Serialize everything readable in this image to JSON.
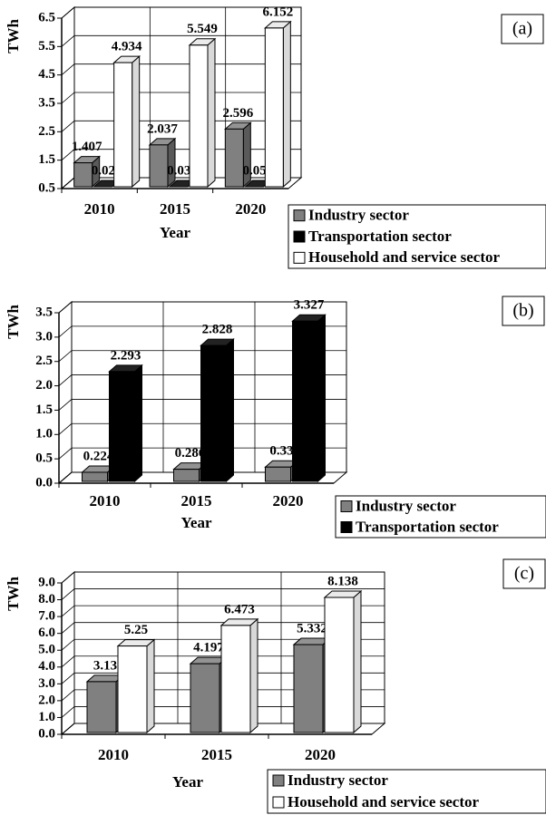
{
  "chart_data": [
    {
      "type": "bar",
      "panel": "(a)",
      "ylabel": "TWh",
      "xlabel": "Year",
      "categories": [
        "2010",
        "2015",
        "2020"
      ],
      "series": [
        {
          "name": "Industry sector",
          "color": "#808080",
          "values": [
            1.407,
            2.037,
            2.596
          ]
        },
        {
          "name": "Transportation sector",
          "color": "#000000",
          "values": [
            0.025,
            0.033,
            0.052
          ]
        },
        {
          "name": "Household and service sector",
          "color": "#ffffff",
          "values": [
            4.934,
            5.549,
            6.152
          ]
        }
      ],
      "ylim": [
        0.5,
        6.5
      ],
      "yticks": [
        0.5,
        1.5,
        2.5,
        3.5,
        4.5,
        5.5,
        6.5
      ],
      "grid": true,
      "legend": "bottom-right"
    },
    {
      "type": "bar",
      "panel": "(b)",
      "ylabel": "TWh",
      "xlabel": "Year",
      "categories": [
        "2010",
        "2015",
        "2020"
      ],
      "series": [
        {
          "name": "Industry sector",
          "color": "#808080",
          "values": [
            0.224,
            0.286,
            0.33
          ]
        },
        {
          "name": "Transportation sector",
          "color": "#000000",
          "values": [
            2.293,
            2.828,
            3.327
          ]
        }
      ],
      "ylim": [
        0,
        3.5
      ],
      "yticks": [
        {
          "value": 0,
          "label": "0.0"
        },
        0.5,
        {
          "value": 1,
          "label": "1.0"
        },
        1.5,
        {
          "value": 2,
          "label": "2.0"
        },
        2.5,
        {
          "value": 3,
          "label": "3.0"
        },
        3.5
      ],
      "grid": true,
      "legend": "bottom-right"
    },
    {
      "type": "bar",
      "panel": "(c)",
      "ylabel": "TWh",
      "xlabel": "Year",
      "categories": [
        "2010",
        "2015",
        "2020"
      ],
      "series": [
        {
          "name": "Industry sector",
          "color": "#808080",
          "values": [
            3.13,
            4.197,
            5.332
          ]
        },
        {
          "name": "Household and service sector",
          "color": "#ffffff",
          "values": [
            5.25,
            6.473,
            8.138
          ]
        }
      ],
      "ylim": [
        0,
        9
      ],
      "yticks": [
        {
          "value": 0,
          "label": "0.0"
        },
        {
          "value": 1,
          "label": "1.0"
        },
        {
          "value": 2,
          "label": "2.0"
        },
        {
          "value": 3,
          "label": "3.0"
        },
        {
          "value": 4,
          "label": "4.0"
        },
        {
          "value": 5,
          "label": "5.0"
        },
        {
          "value": 6,
          "label": "6.0"
        },
        {
          "value": 7,
          "label": "7.0"
        },
        {
          "value": 8,
          "label": "8.0"
        },
        {
          "value": 9,
          "label": "9.0"
        }
      ],
      "grid": true,
      "legend": "bottom-right"
    }
  ]
}
